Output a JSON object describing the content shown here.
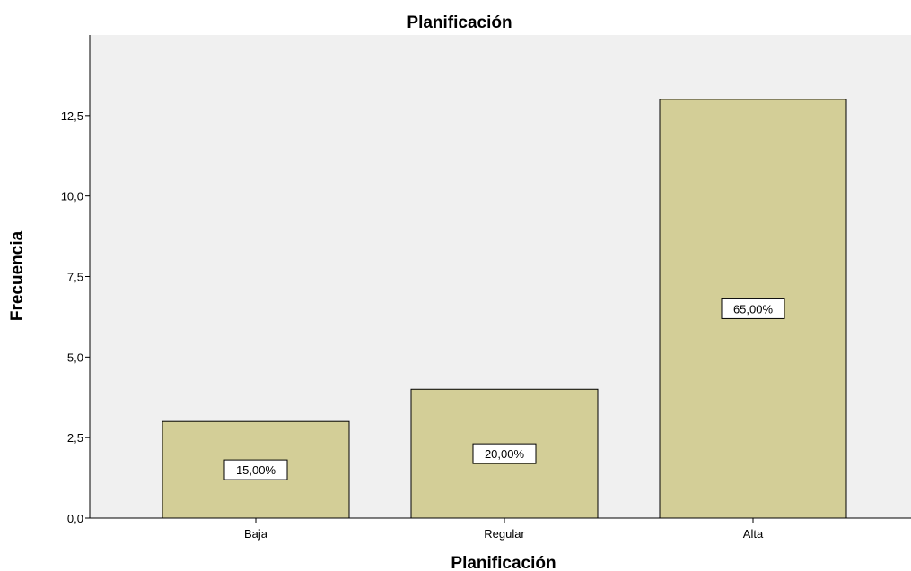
{
  "colors": {
    "plot_background": "#f0f0f0",
    "bar_fill": "#d3ce97",
    "bar_stroke": "#000000",
    "axis": "#000000"
  },
  "chart_data": {
    "type": "bar",
    "title": "Planificación",
    "xlabel": "Planificación",
    "ylabel": "Frecuencia",
    "categories": [
      "Baja",
      "Regular",
      "Alta"
    ],
    "values": [
      3,
      4,
      13
    ],
    "data_labels": [
      "15,00%",
      "20,00%",
      "65,00%"
    ],
    "ylim": [
      0,
      15
    ],
    "yticks": [
      0,
      2.5,
      5,
      7.5,
      10,
      12.5
    ],
    "ytick_labels": [
      "0,0",
      "2,5",
      "5,0",
      "7,5",
      "10,0",
      "12,5"
    ],
    "grid": false,
    "legend": "none"
  }
}
